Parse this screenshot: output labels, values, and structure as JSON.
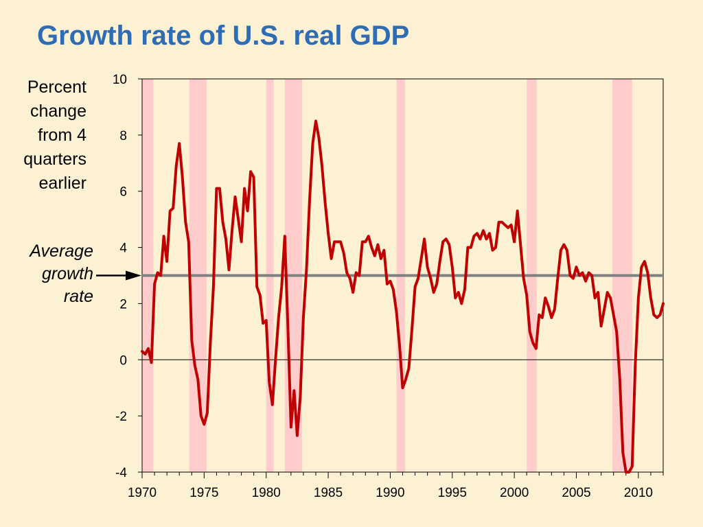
{
  "slide": {
    "title": "Growth rate of U.S. real GDP",
    "ylabel_lines": [
      "Percent",
      "change",
      "from 4",
      "quarters",
      "earlier"
    ],
    "avg_label_lines": [
      "Average",
      "growth",
      "rate"
    ]
  },
  "chart_data": {
    "type": "line",
    "title": "Growth rate of U.S. real GDP",
    "xlabel": "",
    "ylabel": "Percent change from 4 quarters earlier",
    "xlim": [
      1970,
      2012
    ],
    "ylim": [
      -4,
      10
    ],
    "yticks": [
      -4,
      -2,
      0,
      2,
      4,
      6,
      8,
      10
    ],
    "xticks": [
      1970,
      1975,
      1980,
      1985,
      1990,
      1995,
      2000,
      2005,
      2010
    ],
    "grid": false,
    "average_growth_rate": 3.0,
    "annotation": "Average growth rate",
    "recessions": [
      [
        1970.0,
        1970.9
      ],
      [
        1973.8,
        1975.2
      ],
      [
        1980.0,
        1980.6
      ],
      [
        1981.5,
        1982.9
      ],
      [
        1990.5,
        1991.2
      ],
      [
        2001.0,
        2001.8
      ],
      [
        2007.9,
        2009.5
      ]
    ],
    "colors": {
      "series": "#c00000",
      "average": "#808080",
      "recession": "#ffcccc",
      "title": "#2e6db4"
    },
    "series": [
      {
        "values": [
          [
            1970.0,
            0.3
          ],
          [
            1970.25,
            0.2
          ],
          [
            1970.5,
            0.4
          ],
          [
            1970.75,
            -0.1
          ],
          [
            1971.0,
            2.7
          ],
          [
            1971.25,
            3.1
          ],
          [
            1971.5,
            3.0
          ],
          [
            1971.75,
            4.4
          ],
          [
            1972.0,
            3.5
          ],
          [
            1972.25,
            5.3
          ],
          [
            1972.5,
            5.4
          ],
          [
            1972.75,
            6.9
          ],
          [
            1973.0,
            7.7
          ],
          [
            1973.25,
            6.5
          ],
          [
            1973.5,
            4.9
          ],
          [
            1973.75,
            4.2
          ],
          [
            1974.0,
            0.7
          ],
          [
            1974.25,
            -0.2
          ],
          [
            1974.5,
            -0.7
          ],
          [
            1974.75,
            -2.0
          ],
          [
            1975.0,
            -2.3
          ],
          [
            1975.25,
            -1.9
          ],
          [
            1975.5,
            0.6
          ],
          [
            1975.75,
            2.6
          ],
          [
            1976.0,
            6.1
          ],
          [
            1976.25,
            6.1
          ],
          [
            1976.5,
            4.9
          ],
          [
            1976.75,
            4.3
          ],
          [
            1977.0,
            3.2
          ],
          [
            1977.25,
            4.6
          ],
          [
            1977.5,
            5.8
          ],
          [
            1977.75,
            5.0
          ],
          [
            1978.0,
            4.2
          ],
          [
            1978.25,
            6.1
          ],
          [
            1978.5,
            5.3
          ],
          [
            1978.75,
            6.7
          ],
          [
            1979.0,
            6.5
          ],
          [
            1979.25,
            2.6
          ],
          [
            1979.5,
            2.3
          ],
          [
            1979.75,
            1.3
          ],
          [
            1980.0,
            1.4
          ],
          [
            1980.25,
            -0.8
          ],
          [
            1980.5,
            -1.6
          ],
          [
            1980.75,
            0.0
          ],
          [
            1981.0,
            1.5
          ],
          [
            1981.25,
            2.6
          ],
          [
            1981.5,
            4.4
          ],
          [
            1981.75,
            1.2
          ],
          [
            1982.0,
            -2.4
          ],
          [
            1982.25,
            -1.1
          ],
          [
            1982.5,
            -2.7
          ],
          [
            1982.75,
            -1.3
          ],
          [
            1983.0,
            1.5
          ],
          [
            1983.25,
            3.2
          ],
          [
            1983.5,
            5.7
          ],
          [
            1983.75,
            7.7
          ],
          [
            1984.0,
            8.5
          ],
          [
            1984.25,
            7.9
          ],
          [
            1984.5,
            6.9
          ],
          [
            1984.75,
            5.6
          ],
          [
            1985.0,
            4.5
          ],
          [
            1985.25,
            3.6
          ],
          [
            1985.5,
            4.2
          ],
          [
            1985.75,
            4.2
          ],
          [
            1986.0,
            4.2
          ],
          [
            1986.25,
            3.8
          ],
          [
            1986.5,
            3.1
          ],
          [
            1986.75,
            2.9
          ],
          [
            1987.0,
            2.4
          ],
          [
            1987.25,
            3.1
          ],
          [
            1987.5,
            3.0
          ],
          [
            1987.75,
            4.2
          ],
          [
            1988.0,
            4.2
          ],
          [
            1988.25,
            4.4
          ],
          [
            1988.5,
            4.0
          ],
          [
            1988.75,
            3.7
          ],
          [
            1989.0,
            4.1
          ],
          [
            1989.25,
            3.6
          ],
          [
            1989.5,
            3.9
          ],
          [
            1989.75,
            2.7
          ],
          [
            1990.0,
            2.8
          ],
          [
            1990.25,
            2.5
          ],
          [
            1990.5,
            1.7
          ],
          [
            1990.75,
            0.5
          ],
          [
            1991.0,
            -1.0
          ],
          [
            1991.25,
            -0.7
          ],
          [
            1991.5,
            -0.3
          ],
          [
            1991.75,
            1.1
          ],
          [
            1992.0,
            2.6
          ],
          [
            1992.25,
            2.9
          ],
          [
            1992.5,
            3.6
          ],
          [
            1992.75,
            4.3
          ],
          [
            1993.0,
            3.3
          ],
          [
            1993.25,
            2.9
          ],
          [
            1993.5,
            2.4
          ],
          [
            1993.75,
            2.7
          ],
          [
            1994.0,
            3.5
          ],
          [
            1994.25,
            4.2
          ],
          [
            1994.5,
            4.3
          ],
          [
            1994.75,
            4.1
          ],
          [
            1995.0,
            3.3
          ],
          [
            1995.25,
            2.2
          ],
          [
            1995.5,
            2.4
          ],
          [
            1995.75,
            2.0
          ],
          [
            1996.0,
            2.5
          ],
          [
            1996.25,
            4.0
          ],
          [
            1996.5,
            4.0
          ],
          [
            1996.75,
            4.4
          ],
          [
            1997.0,
            4.5
          ],
          [
            1997.25,
            4.3
          ],
          [
            1997.5,
            4.6
          ],
          [
            1997.75,
            4.3
          ],
          [
            1998.0,
            4.5
          ],
          [
            1998.25,
            3.9
          ],
          [
            1998.5,
            4.0
          ],
          [
            1998.75,
            4.9
          ],
          [
            1999.0,
            4.9
          ],
          [
            1999.25,
            4.8
          ],
          [
            1999.5,
            4.7
          ],
          [
            1999.75,
            4.8
          ],
          [
            2000.0,
            4.2
          ],
          [
            2000.25,
            5.3
          ],
          [
            2000.5,
            4.1
          ],
          [
            2000.75,
            2.9
          ],
          [
            2001.0,
            2.3
          ],
          [
            2001.25,
            1.0
          ],
          [
            2001.5,
            0.6
          ],
          [
            2001.75,
            0.4
          ],
          [
            2002.0,
            1.6
          ],
          [
            2002.25,
            1.5
          ],
          [
            2002.5,
            2.2
          ],
          [
            2002.75,
            1.9
          ],
          [
            2003.0,
            1.5
          ],
          [
            2003.25,
            1.8
          ],
          [
            2003.5,
            2.9
          ],
          [
            2003.75,
            3.9
          ],
          [
            2004.0,
            4.1
          ],
          [
            2004.25,
            3.9
          ],
          [
            2004.5,
            3.0
          ],
          [
            2004.75,
            2.9
          ],
          [
            2005.0,
            3.3
          ],
          [
            2005.25,
            3.0
          ],
          [
            2005.5,
            3.1
          ],
          [
            2005.75,
            2.8
          ],
          [
            2006.0,
            3.1
          ],
          [
            2006.25,
            3.0
          ],
          [
            2006.5,
            2.2
          ],
          [
            2006.75,
            2.4
          ],
          [
            2007.0,
            1.2
          ],
          [
            2007.25,
            1.8
          ],
          [
            2007.5,
            2.4
          ],
          [
            2007.75,
            2.2
          ],
          [
            2008.0,
            1.6
          ],
          [
            2008.25,
            1.0
          ],
          [
            2008.5,
            -0.7
          ],
          [
            2008.75,
            -3.3
          ],
          [
            2009.0,
            -4.0
          ],
          [
            2009.25,
            -4.0
          ],
          [
            2009.5,
            -3.8
          ],
          [
            2009.75,
            -0.2
          ],
          [
            2010.0,
            2.2
          ],
          [
            2010.25,
            3.3
          ],
          [
            2010.5,
            3.5
          ],
          [
            2010.75,
            3.1
          ],
          [
            2011.0,
            2.2
          ],
          [
            2011.25,
            1.6
          ],
          [
            2011.5,
            1.5
          ],
          [
            2011.75,
            1.6
          ],
          [
            2012.0,
            2.0
          ]
        ]
      }
    ]
  }
}
